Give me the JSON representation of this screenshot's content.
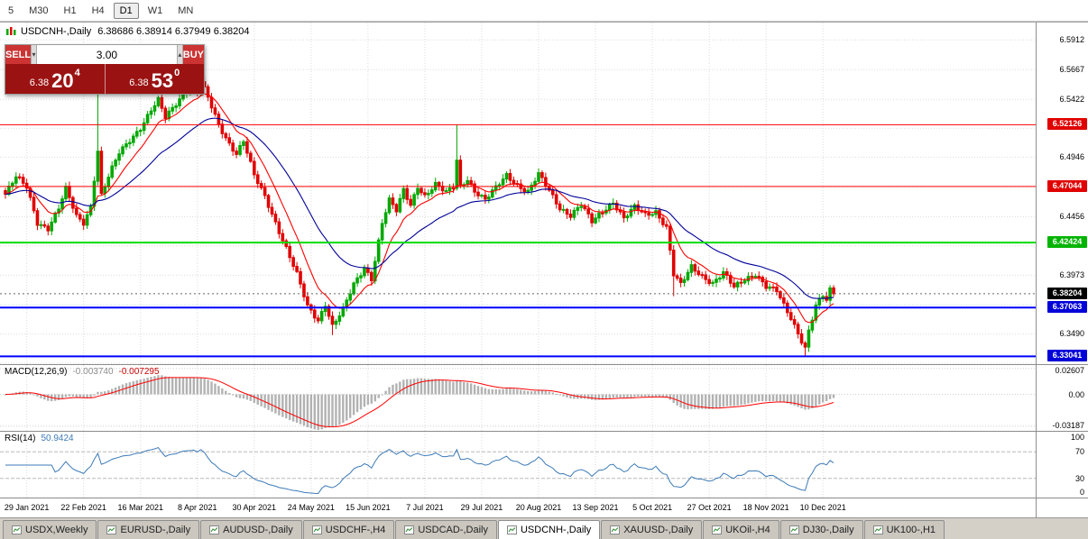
{
  "colors": {
    "up": "#00A800",
    "down": "#E00000",
    "ma_fast": "#FF0000",
    "ma_slow": "#000099",
    "grid": "#DBDBDB",
    "macd_hist": "#B2B2B2",
    "macd_signal": "#FF0000",
    "rsi_line": "#3C7AB8"
  },
  "toolbar": {
    "timeframes": [
      "5",
      "M30",
      "H1",
      "H4",
      "D1",
      "W1",
      "MN"
    ],
    "active": "D1"
  },
  "chart_header": {
    "title": "USDCNH-,Daily",
    "ohlc": "6.38686 6.38914 6.37949 6.38204"
  },
  "trade_panel": {
    "sell_label": "SELL",
    "buy_label": "BUY",
    "volume": "3.00",
    "spin_down_icon": "▾",
    "spin_up_icon": "▴",
    "bid_small": "6.38",
    "bid_big": "20",
    "bid_sup": "4",
    "ask_small": "6.38",
    "ask_big": "53",
    "ask_sup": "0"
  },
  "chart_data": {
    "type": "candlestick",
    "symbol": "USDCNH-",
    "timeframe": "Daily",
    "last": {
      "open": 6.38686,
      "high": 6.38914,
      "low": 6.37949,
      "close": 6.38204
    },
    "bar_count": 234,
    "x_labels": [
      "29 Jan 2021",
      "22 Feb 2021",
      "16 Mar 2021",
      "8 Apr 2021",
      "30 Apr 2021",
      "24 May 2021",
      "15 Jun 2021",
      "7 Jul 2021",
      "29 Jul 2021",
      "20 Aug 2021",
      "13 Sep 2021",
      "5 Oct 2021",
      "27 Oct 2021",
      "18 Nov 2021",
      "10 Dec 2021"
    ],
    "label_indices": [
      6,
      22,
      38,
      54,
      70,
      86,
      102,
      118,
      134,
      150,
      166,
      182,
      198,
      214,
      230
    ],
    "price_path": [
      [
        0,
        6.464
      ],
      [
        3,
        6.478
      ],
      [
        6,
        6.47
      ],
      [
        9,
        6.441
      ],
      [
        12,
        6.436
      ],
      [
        15,
        6.452
      ],
      [
        17,
        6.468
      ],
      [
        20,
        6.446
      ],
      [
        22,
        6.441
      ],
      [
        24,
        6.454
      ],
      [
        26,
        6.5
      ],
      [
        27,
        6.463
      ],
      [
        29,
        6.478
      ],
      [
        32,
        6.498
      ],
      [
        35,
        6.509
      ],
      [
        38,
        6.519
      ],
      [
        41,
        6.533
      ],
      [
        43,
        6.541
      ],
      [
        45,
        6.527
      ],
      [
        48,
        6.539
      ],
      [
        51,
        6.551
      ],
      [
        54,
        6.549
      ],
      [
        55,
        6.557
      ],
      [
        57,
        6.543
      ],
      [
        60,
        6.521
      ],
      [
        63,
        6.506
      ],
      [
        65,
        6.498
      ],
      [
        67,
        6.508
      ],
      [
        70,
        6.479
      ],
      [
        73,
        6.462
      ],
      [
        76,
        6.441
      ],
      [
        79,
        6.42
      ],
      [
        82,
        6.398
      ],
      [
        85,
        6.371
      ],
      [
        88,
        6.36
      ],
      [
        90,
        6.374
      ],
      [
        92,
        6.356
      ],
      [
        95,
        6.369
      ],
      [
        98,
        6.389
      ],
      [
        101,
        6.403
      ],
      [
        103,
        6.395
      ],
      [
        106,
        6.441
      ],
      [
        108,
        6.459
      ],
      [
        110,
        6.45
      ],
      [
        112,
        6.467
      ],
      [
        114,
        6.455
      ],
      [
        116,
        6.471
      ],
      [
        118,
        6.463
      ],
      [
        121,
        6.472
      ],
      [
        124,
        6.465
      ],
      [
        126,
        6.47
      ],
      [
        127,
        6.492
      ],
      [
        128,
        6.471
      ],
      [
        130,
        6.477
      ],
      [
        132,
        6.467
      ],
      [
        135,
        6.459
      ],
      [
        138,
        6.469
      ],
      [
        141,
        6.48
      ],
      [
        144,
        6.472
      ],
      [
        147,
        6.466
      ],
      [
        150,
        6.48
      ],
      [
        153,
        6.467
      ],
      [
        156,
        6.453
      ],
      [
        159,
        6.447
      ],
      [
        162,
        6.455
      ],
      [
        165,
        6.441
      ],
      [
        168,
        6.45
      ],
      [
        171,
        6.458
      ],
      [
        174,
        6.444
      ],
      [
        177,
        6.453
      ],
      [
        180,
        6.447
      ],
      [
        183,
        6.45
      ],
      [
        186,
        6.437
      ],
      [
        188,
        6.398
      ],
      [
        190,
        6.389
      ],
      [
        193,
        6.404
      ],
      [
        196,
        6.397
      ],
      [
        199,
        6.391
      ],
      [
        202,
        6.399
      ],
      [
        205,
        6.387
      ],
      [
        208,
        6.394
      ],
      [
        211,
        6.399
      ],
      [
        214,
        6.388
      ],
      [
        217,
        6.384
      ],
      [
        219,
        6.372
      ],
      [
        221,
        6.362
      ],
      [
        223,
        6.35
      ],
      [
        225,
        6.338
      ],
      [
        226,
        6.352
      ],
      [
        228,
        6.372
      ],
      [
        230,
        6.38
      ],
      [
        231,
        6.376
      ],
      [
        232,
        6.387
      ],
      [
        233,
        6.38204
      ]
    ],
    "spikes": {
      "26": {
        "high": 6.547
      },
      "51": {
        "high": 6.5655
      },
      "55": {
        "high": 6.5645
      },
      "92": {
        "low": 6.348
      },
      "127": {
        "high": 6.5213
      },
      "188": {
        "low": 6.38
      },
      "225": {
        "low": 6.331
      },
      "233": {
        "high": 6.38914,
        "low": 6.37949
      }
    },
    "y_axis": {
      "top": 6.6055,
      "bottom": 6.3233,
      "plain_labels": [
        {
          "text": "6.5912",
          "price": 6.5912
        },
        {
          "text": "6.5667",
          "price": 6.5667
        },
        {
          "text": "6.5422",
          "price": 6.5422
        },
        {
          "text": "6.4946",
          "price": 6.4946
        },
        {
          "text": "6.4456",
          "price": 6.4456
        },
        {
          "text": "6.3973",
          "price": 6.3973
        },
        {
          "text": "6.3490",
          "price": 6.349
        }
      ],
      "grid_prices": [
        6.5912,
        6.5667,
        6.5422,
        6.5184,
        6.4946,
        6.4701,
        6.4456,
        6.4215,
        6.3973,
        6.3731,
        6.349,
        6.3248
      ]
    },
    "hlines": [
      {
        "price": 6.52126,
        "label": "6.52126",
        "color": "#FF0000",
        "box": "#E00000",
        "width": 1
      },
      {
        "price": 6.47044,
        "label": "6.47044",
        "color": "#FF0000",
        "box": "#E00000",
        "width": 1
      },
      {
        "price": 6.42424,
        "label": "6.42424",
        "color": "#00DC00",
        "box": "#00B400",
        "width": 2
      },
      {
        "price": 6.37063,
        "label": "6.37063",
        "color": "#0000FF",
        "box": "#0000D8",
        "width": 2
      },
      {
        "price": 6.33041,
        "label": "6.33041",
        "color": "#0000FF",
        "box": "#0000D8",
        "width": 2
      }
    ],
    "current_price": {
      "label": "6.38204",
      "value": 6.38204,
      "box": "#000000"
    }
  },
  "macd": {
    "label": "MACD(12,26,9)",
    "value1": "-0.003740",
    "value2": "-0.007295",
    "axis": [
      {
        "text": "0.02607",
        "value": 0.02607
      },
      {
        "text": "0.00",
        "value": 0
      },
      {
        "text": "-0.03187",
        "value": -0.03187
      }
    ]
  },
  "rsi": {
    "label": "RSI(14)",
    "value": "50.9424",
    "axis": [
      {
        "text": "100",
        "value": 100
      },
      {
        "text": "70",
        "value": 70
      },
      {
        "text": "30",
        "value": 30
      },
      {
        "text": "0",
        "value": 0
      }
    ],
    "levels": [
      70,
      30
    ]
  },
  "tabs": [
    "USDX,Weekly",
    "EURUSD-,Daily",
    "AUDUSD-,Daily",
    "USDCHF-,H4",
    "USDCAD-,Daily",
    "USDCNH-,Daily",
    "XAUUSD-,Daily",
    "UKOil-,H4",
    "DJ30-,Daily",
    "UK100-,H1"
  ],
  "active_tab": "USDCNH-,Daily"
}
